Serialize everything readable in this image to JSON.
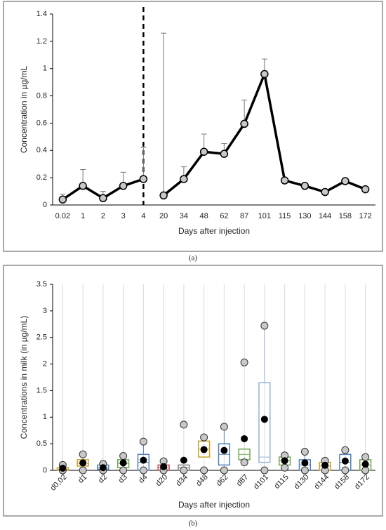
{
  "captions": [
    "(a)",
    "(b)"
  ],
  "chart_data": [
    {
      "type": "line",
      "x_label": "Days after injection",
      "y_label": "Concentration in µg/mL",
      "categories": [
        "0.02",
        "1",
        "2",
        "3",
        "4",
        "20",
        "34",
        "48",
        "62",
        "87",
        "101",
        "115",
        "130",
        "144",
        "158",
        "172"
      ],
      "divider": "4",
      "series": [
        {
          "color": "#000000",
          "values": [
            0.04,
            0.14,
            0.05,
            0.14,
            0.19,
            null,
            null,
            null,
            null,
            null,
            null,
            null,
            null,
            null,
            null,
            null
          ],
          "errors": [
            0.04,
            0.12,
            0.05,
            0.1,
            0.23,
            null,
            null,
            null,
            null,
            null,
            null,
            null,
            null,
            null,
            null,
            null
          ]
        },
        {
          "color": "#000000",
          "values": [
            null,
            null,
            null,
            null,
            null,
            0.07,
            0.19,
            0.39,
            0.375,
            0.595,
            0.96,
            0.18,
            0.14,
            0.095,
            0.175,
            0.115
          ],
          "errors": [
            null,
            null,
            null,
            null,
            null,
            1.19,
            0.09,
            0.13,
            0.075,
            0.175,
            0.11,
            null,
            null,
            null,
            null,
            null
          ]
        }
      ],
      "ylim": [
        0,
        1.4
      ],
      "yticks": [
        0,
        0.2,
        0.4,
        0.6,
        0.8,
        1,
        1.2,
        1.4
      ]
    },
    {
      "type": "box",
      "x_label": "Days after injection",
      "y_label": "Concentrations in milk (in µg/mL)",
      "categories": [
        "d0,02",
        "d1",
        "d2",
        "d3",
        "d4",
        "d20",
        "d34",
        "d48",
        "d62",
        "d87",
        "d101",
        "d115",
        "d130",
        "d144",
        "d158",
        "d172"
      ],
      "q1": [
        0,
        0.08,
        0.02,
        0.05,
        0,
        0,
        0,
        0.25,
        0.1,
        0.2,
        0.15,
        0.1,
        0,
        0,
        0,
        0
      ],
      "q3": [
        0.05,
        0.2,
        0.1,
        0.2,
        0.3,
        0.1,
        0.1,
        0.55,
        0.5,
        0.4,
        1.65,
        0.25,
        0.2,
        0.15,
        0.3,
        0.2
      ],
      "medians": [
        0.02,
        0.13,
        0.05,
        0.13,
        0.15,
        0.05,
        0.05,
        0.4,
        0.3,
        0.3,
        0.25,
        0.18,
        0.1,
        0.08,
        0.15,
        0.1
      ],
      "whiskers": [
        0.1,
        0.3,
        0.12,
        0.27,
        0.54,
        0.17,
        0.1,
        0.62,
        0.82,
        0.4,
        2.72,
        0.28,
        0.35,
        0.18,
        0.38,
        0.25
      ],
      "means": [
        0.04,
        0.14,
        0.05,
        0.14,
        0.19,
        0.07,
        0.19,
        0.39,
        0.375,
        0.595,
        0.96,
        0.18,
        0.14,
        0.095,
        0.175,
        0.115
      ],
      "points": [
        [
          0,
          0.1
        ],
        [
          0,
          0.3
        ],
        [
          0,
          0.12
        ],
        [
          0,
          0.27
        ],
        [
          0,
          0.54
        ],
        [
          0,
          0.17
        ],
        [
          0,
          0.86
        ],
        [
          0,
          0.62
        ],
        [
          0,
          0.82
        ],
        [
          0.15,
          2.03
        ],
        [
          0,
          2.72
        ],
        [
          0.05,
          0.28
        ],
        [
          0,
          0.35
        ],
        [
          0,
          0.18
        ],
        [
          0,
          0.38
        ],
        [
          0,
          0.25
        ]
      ],
      "box_colors": [
        "#c9a227",
        "#c9a227",
        "#4f81bd",
        "#6aa84f",
        "#4f81bd",
        "#c0504d",
        "#7f7f7f",
        "#c9a227",
        "#4f81bd",
        "#6aa84f",
        "#95b3d7",
        "#6aa84f",
        "#4f81bd",
        "#c9a227",
        "#4f81bd",
        "#6aa84f"
      ],
      "grid": "x",
      "ylim": [
        0,
        3.5
      ],
      "yticks": [
        0,
        0.5,
        1,
        1.5,
        2,
        2.5,
        3,
        3.5
      ]
    }
  ]
}
